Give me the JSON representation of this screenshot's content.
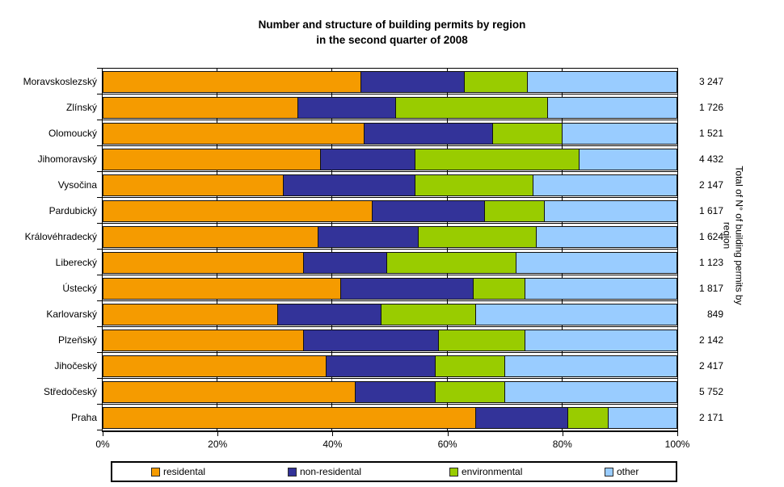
{
  "title": {
    "line1": "Number and structure of building permits by region",
    "line2": "in the second quarter of 2008"
  },
  "x_axis": {
    "tick_labels": [
      "0%",
      "20%",
      "40%",
      "60%",
      "80%",
      "100%"
    ]
  },
  "right_axis_label": {
    "line1": "Total of N° of building permits by",
    "line2": "region"
  },
  "colors": {
    "residental": "#F59B00",
    "non_residental": "#333399",
    "environmental": "#99CC00",
    "other": "#99CCFF",
    "axis": "#000000"
  },
  "legend": {
    "items": [
      {
        "label": "residental",
        "color": "#F59B00"
      },
      {
        "label": "non-residental",
        "color": "#333399"
      },
      {
        "label": "environmental",
        "color": "#99CC00"
      },
      {
        "label": "other",
        "color": "#99CCFF"
      }
    ]
  },
  "chart_data": {
    "type": "bar",
    "orientation": "horizontal",
    "stacked": true,
    "unit": "%",
    "xlim": [
      0,
      100
    ],
    "grid": true,
    "legend_position": "bottom",
    "title": "Number and structure of building permits by region in the second quarter of 2008",
    "categories": [
      "Moravskoslezský",
      "Zlínský",
      "Olomoucký",
      "Jihomoravský",
      "Vysočina",
      "Pardubický",
      "Královéhradecký",
      "Liberecký",
      "Ústecký",
      "Karlovarský",
      "Plzeňský",
      "Jihočeský",
      "Středočeský",
      "Praha"
    ],
    "series": [
      {
        "name": "residental",
        "color": "#F59B00",
        "values": [
          45,
          34,
          45.5,
          38,
          31.5,
          47,
          37.5,
          35,
          41.5,
          30.5,
          35,
          39,
          44,
          65
        ]
      },
      {
        "name": "non-residental",
        "color": "#333399",
        "values": [
          18,
          17,
          22.5,
          16.5,
          23,
          19.5,
          17.5,
          14.5,
          23,
          18,
          23.5,
          19,
          14,
          16
        ]
      },
      {
        "name": "environmental",
        "color": "#99CC00",
        "values": [
          11,
          26.5,
          12,
          28.5,
          20.5,
          10.5,
          20.5,
          22.5,
          9,
          16.5,
          15,
          12,
          12,
          7
        ]
      },
      {
        "name": "other",
        "color": "#99CCFF",
        "values": [
          26,
          22.5,
          20,
          17,
          25,
          23,
          24.5,
          28,
          26.5,
          35,
          26.5,
          30,
          30,
          12
        ]
      }
    ],
    "totals": [
      "3 247",
      "1 726",
      "1 521",
      "4 432",
      "2 147",
      "1 617",
      "1 624",
      "1 123",
      "1 817",
      "849",
      "2 142",
      "2 417",
      "5 752",
      "2 171"
    ]
  }
}
